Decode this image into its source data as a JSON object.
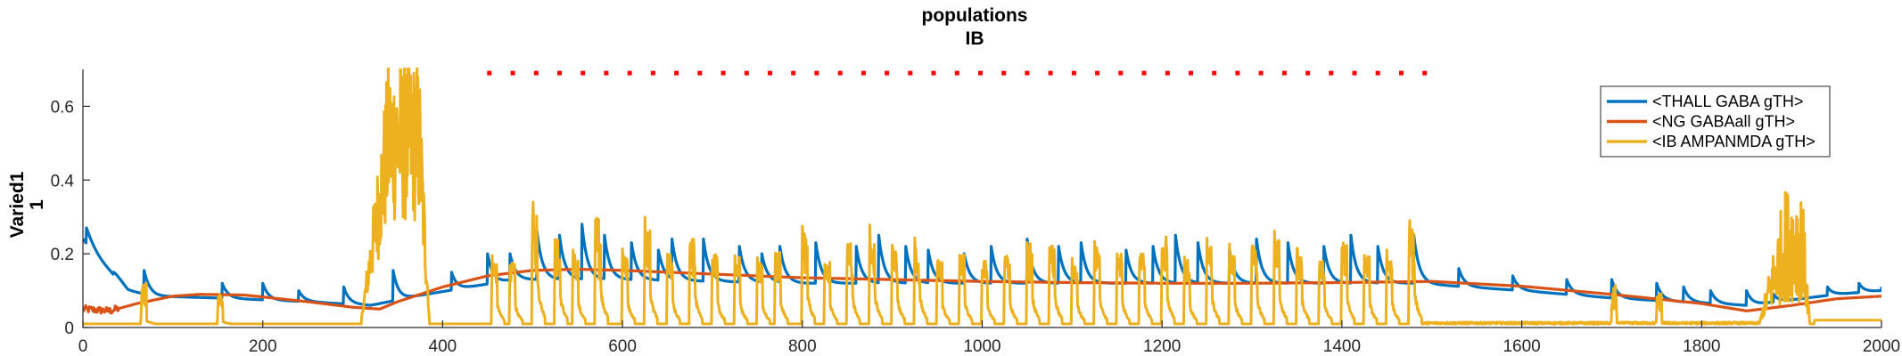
{
  "chart_data": {
    "type": "line",
    "title": [
      "populations",
      "IB"
    ],
    "ylabel": [
      "Varied1",
      "1"
    ],
    "xlabel": "",
    "xlim": [
      0,
      2000
    ],
    "ylim": [
      0,
      0.7
    ],
    "xticks": [
      0,
      200,
      400,
      600,
      800,
      1000,
      1200,
      1400,
      1600,
      1800,
      2000
    ],
    "yticks": [
      0,
      0.2,
      0.4,
      0.6
    ],
    "xtick_labels": [
      "0",
      "200",
      "400",
      "600",
      "800",
      "1000",
      "1200",
      "1400",
      "1600",
      "1800",
      "2000"
    ],
    "ytick_labels": [
      "0",
      "0.2",
      "0.4",
      "0.6"
    ],
    "legend_position": "top-right",
    "series": [
      {
        "name": "<THALL GABA gTH>",
        "color": "#0072BD",
        "baseline": [
          [
            0,
            0.24
          ],
          [
            20,
            0.18
          ],
          [
            50,
            0.1
          ],
          [
            80,
            0.085
          ],
          [
            150,
            0.08
          ],
          [
            250,
            0.07
          ],
          [
            320,
            0.06
          ],
          [
            370,
            0.085
          ],
          [
            430,
            0.11
          ],
          [
            480,
            0.13
          ],
          [
            600,
            0.13
          ],
          [
            800,
            0.12
          ],
          [
            1000,
            0.12
          ],
          [
            1200,
            0.12
          ],
          [
            1400,
            0.12
          ],
          [
            1480,
            0.12
          ],
          [
            1600,
            0.1
          ],
          [
            1700,
            0.08
          ],
          [
            1850,
            0.06
          ],
          [
            1950,
            0.09
          ],
          [
            2000,
            0.1
          ]
        ],
        "peaks": [
          [
            4,
            0.27
          ],
          [
            34,
            0.15
          ],
          [
            68,
            0.155
          ],
          [
            155,
            0.12
          ],
          [
            200,
            0.12
          ],
          [
            240,
            0.1
          ],
          [
            290,
            0.11
          ],
          [
            345,
            0.155
          ],
          [
            410,
            0.15
          ],
          [
            450,
            0.2
          ],
          [
            475,
            0.2
          ],
          [
            505,
            0.26
          ],
          [
            530,
            0.25
          ],
          [
            555,
            0.28
          ],
          [
            580,
            0.25
          ],
          [
            610,
            0.23
          ],
          [
            640,
            0.21
          ],
          [
            655,
            0.24
          ],
          [
            690,
            0.24
          ],
          [
            730,
            0.22
          ],
          [
            755,
            0.2
          ],
          [
            775,
            0.22
          ],
          [
            815,
            0.23
          ],
          [
            860,
            0.22
          ],
          [
            885,
            0.25
          ],
          [
            915,
            0.22
          ],
          [
            940,
            0.21
          ],
          [
            980,
            0.2
          ],
          [
            1010,
            0.22
          ],
          [
            1050,
            0.24
          ],
          [
            1085,
            0.22
          ],
          [
            1110,
            0.23
          ],
          [
            1160,
            0.21
          ],
          [
            1190,
            0.22
          ],
          [
            1215,
            0.25
          ],
          [
            1240,
            0.23
          ],
          [
            1275,
            0.21
          ],
          [
            1305,
            0.24
          ],
          [
            1340,
            0.23
          ],
          [
            1380,
            0.22
          ],
          [
            1410,
            0.25
          ],
          [
            1440,
            0.22
          ],
          [
            1480,
            0.25
          ],
          [
            1530,
            0.16
          ],
          [
            1590,
            0.14
          ],
          [
            1650,
            0.13
          ],
          [
            1700,
            0.13
          ],
          [
            1750,
            0.12
          ],
          [
            1780,
            0.11
          ],
          [
            1810,
            0.1
          ],
          [
            1850,
            0.1
          ],
          [
            1880,
            0.09
          ],
          [
            1940,
            0.11
          ],
          [
            1975,
            0.12
          ],
          [
            2000,
            0.11
          ]
        ]
      },
      {
        "name": "<NG GABAall gTH>",
        "color": "#D95319",
        "points": [
          [
            0,
            0.05
          ],
          [
            30,
            0.045
          ],
          [
            60,
            0.065
          ],
          [
            100,
            0.085
          ],
          [
            130,
            0.09
          ],
          [
            180,
            0.088
          ],
          [
            250,
            0.07
          ],
          [
            300,
            0.055
          ],
          [
            330,
            0.05
          ],
          [
            350,
            0.07
          ],
          [
            400,
            0.11
          ],
          [
            450,
            0.14
          ],
          [
            500,
            0.155
          ],
          [
            550,
            0.158
          ],
          [
            600,
            0.155
          ],
          [
            700,
            0.145
          ],
          [
            800,
            0.135
          ],
          [
            900,
            0.13
          ],
          [
            1000,
            0.125
          ],
          [
            1100,
            0.122
          ],
          [
            1200,
            0.12
          ],
          [
            1300,
            0.12
          ],
          [
            1400,
            0.122
          ],
          [
            1500,
            0.125
          ],
          [
            1600,
            0.112
          ],
          [
            1700,
            0.09
          ],
          [
            1800,
            0.065
          ],
          [
            1850,
            0.045
          ],
          [
            1900,
            0.06
          ],
          [
            1950,
            0.078
          ],
          [
            2000,
            0.085
          ]
        ]
      },
      {
        "name": "<IB AMPANMDA gTH>",
        "color": "#EDB120",
        "baseline": 0.01,
        "burst1": [
          310,
          385,
          0.7
        ],
        "burst2": [
          1880,
          1920,
          0.36
        ],
        "spikes": [
          [
            65,
            0.04
          ],
          [
            150,
            0.03
          ],
          [
            455,
            0.2
          ],
          [
            475,
            0.19
          ],
          [
            500,
            0.39
          ],
          [
            525,
            0.28
          ],
          [
            545,
            0.22
          ],
          [
            570,
            0.35
          ],
          [
            600,
            0.22
          ],
          [
            625,
            0.31
          ],
          [
            650,
            0.22
          ],
          [
            675,
            0.28
          ],
          [
            700,
            0.22
          ],
          [
            725,
            0.22
          ],
          [
            750,
            0.2
          ],
          [
            770,
            0.23
          ],
          [
            800,
            0.3
          ],
          [
            825,
            0.2
          ],
          [
            850,
            0.26
          ],
          [
            875,
            0.28
          ],
          [
            900,
            0.25
          ],
          [
            925,
            0.27
          ],
          [
            950,
            0.2
          ],
          [
            975,
            0.22
          ],
          [
            1000,
            0.2
          ],
          [
            1025,
            0.22
          ],
          [
            1050,
            0.27
          ],
          [
            1075,
            0.27
          ],
          [
            1100,
            0.2
          ],
          [
            1125,
            0.24
          ],
          [
            1150,
            0.22
          ],
          [
            1175,
            0.22
          ],
          [
            1200,
            0.28
          ],
          [
            1225,
            0.2
          ],
          [
            1250,
            0.25
          ],
          [
            1275,
            0.23
          ],
          [
            1300,
            0.26
          ],
          [
            1325,
            0.27
          ],
          [
            1350,
            0.24
          ],
          [
            1375,
            0.21
          ],
          [
            1400,
            0.26
          ],
          [
            1425,
            0.22
          ],
          [
            1450,
            0.22
          ],
          [
            1475,
            0.32
          ],
          [
            1700,
            0.02
          ],
          [
            1750,
            0.015
          ]
        ]
      }
    ],
    "markers": {
      "color": "#FF0000",
      "y": 0.69,
      "x": [
        452,
        478,
        504,
        530,
        556,
        582,
        608,
        634,
        660,
        686,
        712,
        738,
        764,
        790,
        816,
        842,
        868,
        894,
        920,
        946,
        972,
        998,
        1024,
        1050,
        1076,
        1102,
        1128,
        1154,
        1180,
        1206,
        1232,
        1258,
        1284,
        1310,
        1336,
        1362,
        1388,
        1414,
        1440,
        1466,
        1492
      ]
    }
  }
}
